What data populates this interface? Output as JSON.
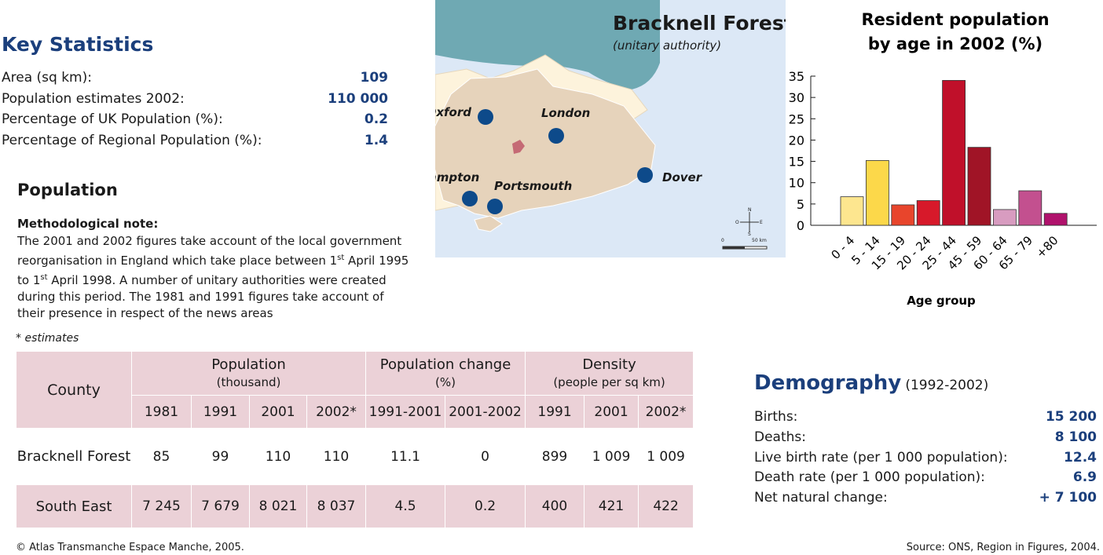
{
  "key_statistics": {
    "title": "Key Statistics",
    "rows": [
      {
        "label": "Area (sq km):",
        "value": "109"
      },
      {
        "label": "Population estimates 2002:",
        "value": "110 000"
      },
      {
        "label": "Percentage of UK Population (%):",
        "value": "0.2"
      },
      {
        "label": "Percentage of Regional Population (%):",
        "value": "1.4"
      }
    ]
  },
  "map": {
    "title": "Bracknell Forest",
    "subtitle": "(unitary authority)",
    "cities": [
      "Oxford",
      "London",
      "Southampton",
      "Portsmouth",
      "Dover"
    ],
    "compass": [
      "N",
      "S",
      "E",
      "O"
    ],
    "scale": [
      "0",
      "50 km"
    ]
  },
  "population": {
    "title": "Population",
    "note_title": "Methodological note:",
    "note_parts": [
      "The 2001 and 2002 figures take account of the local government reorganisation in England which take place between 1",
      "st",
      " April 1995 to 1",
      "st",
      " April 1998. A number of unitary authorities were created during this period. The 1981 and 1991 figures take account of their presence in respect of the news areas"
    ],
    "footnote": "* estimates"
  },
  "table": {
    "county": "County",
    "groups": [
      {
        "title": "Population",
        "unit": "(thousand)",
        "columns": [
          "1981",
          "1991",
          "2001",
          "2002*"
        ]
      },
      {
        "title": "Population change",
        "unit": "(%)",
        "columns": [
          "1991-2001",
          "2001-2002"
        ]
      },
      {
        "title": "Density",
        "unit": "(people per sq km)",
        "columns": [
          "1991",
          "2001",
          "2002*"
        ]
      }
    ],
    "rows": [
      [
        "Bracknell Forest",
        "85",
        "99",
        "110",
        "110",
        "11.1",
        "0",
        "899",
        "1 009",
        "1 009"
      ],
      [
        "South East",
        "7 245",
        "7 679",
        "8 021",
        "8 037",
        "4.5",
        "0.2",
        "400",
        "421",
        "422"
      ]
    ]
  },
  "chart_data": {
    "type": "bar",
    "title": [
      "Resident population",
      "by age in 2002 (%)"
    ],
    "x_label": "Age group",
    "categories": [
      "0 - 4",
      "5 - 14",
      "15 - 19",
      "20 - 24",
      "25 - 44",
      "45 - 59",
      "60 - 64",
      "65 - 79",
      "+80"
    ],
    "values": [
      6.7,
      15.2,
      4.8,
      5.8,
      34,
      18.3,
      3.7,
      8.1,
      2.8
    ],
    "colors": [
      "#fde68f",
      "#fcd84a",
      "#e8452c",
      "#d7192a",
      "#c0102a",
      "#a01426",
      "#d89cc0",
      "#c3508f",
      "#b0126c"
    ],
    "ylim": [
      0,
      35
    ],
    "yticks": [
      0,
      5,
      10,
      15,
      20,
      25,
      30,
      35
    ]
  },
  "demography": {
    "title": "Demography",
    "period": "(1992-2002)",
    "rows": [
      {
        "label": "Births:",
        "value": "15 200"
      },
      {
        "label": "Deaths:",
        "value": "8 100"
      },
      {
        "label": "Live birth rate (per 1 000 population):",
        "value": "12.4"
      },
      {
        "label": "Death rate (per 1 000 population):",
        "value": "6.9"
      },
      {
        "label": "Net natural change:",
        "value": "+ 7 100"
      }
    ]
  },
  "footer": {
    "copyright": "© Atlas Transmanche Espace Manche, 2005.",
    "source": "Source: ONS, Region in Figures, 2004."
  }
}
